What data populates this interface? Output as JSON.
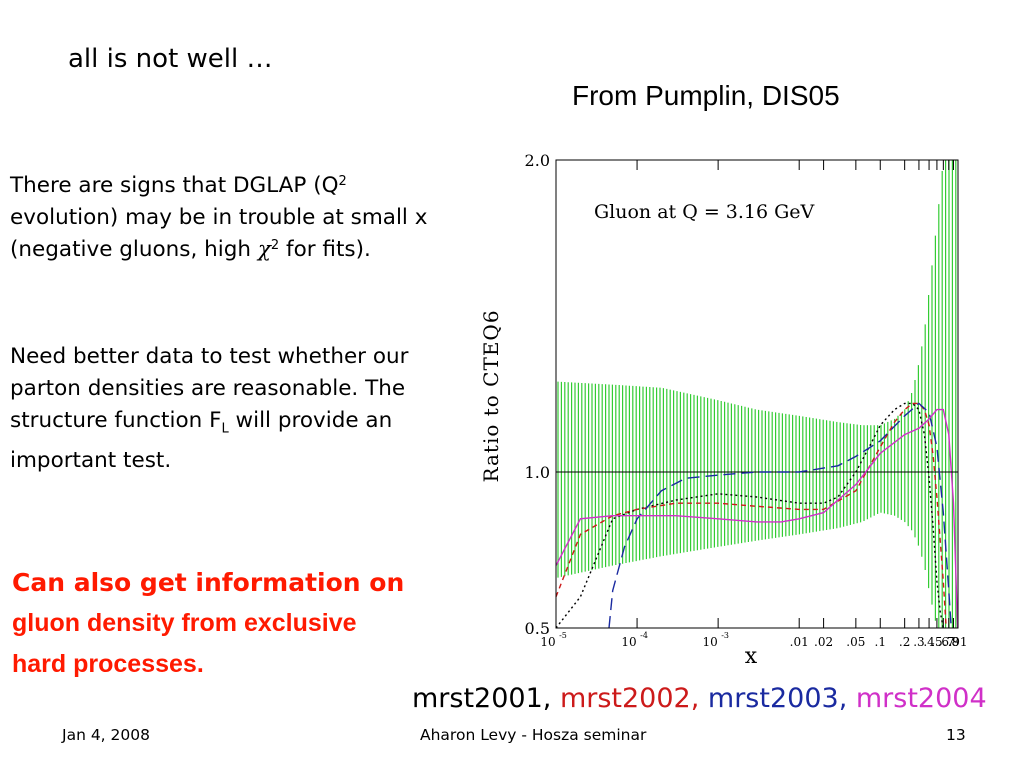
{
  "slide": {
    "title": "all is not well …",
    "source_note": "From Pumplin, DIS05",
    "para1": {
      "part1": "There are signs that DGLAP (Q",
      "sup1": "2",
      "part2": "evolution) may be in trouble at small x (negative gluons, high ",
      "chi": "χ",
      "sup2": "2",
      "part3": "for fits)."
    },
    "para2": {
      "part1": "Need better data to test whether our parton densities are reasonable. The structure function F",
      "sub": "L",
      "part2": " will provide an important test."
    },
    "highlight": {
      "line1": "Can also get information on",
      "line2": "gluon density from exclusive",
      "line3": "hard processes."
    },
    "footer": {
      "date": "Jan 4, 2008",
      "center": "Aharon Levy - Hosza seminar",
      "page": "13"
    }
  },
  "colors": {
    "band": "#33cc33",
    "mrst2001": "#000000",
    "mrst2002": "#cc1a1a",
    "mrst2003": "#1a2aa0",
    "mrst2004": "#d030c8",
    "highlight": "#ff1a00"
  },
  "chart_data": {
    "type": "line",
    "annotation": "Gluon at Q = 3.16 GeV",
    "ylabel": "Ratio to CTEQ6",
    "xlabel": "x",
    "xscale": "log",
    "xlim": [
      1e-05,
      0.91
    ],
    "ylim": [
      0.5,
      2.0
    ],
    "reference_line": 1.0,
    "y_ticks": [
      {
        "value": 2.0,
        "label": "2.0"
      },
      {
        "value": 1.0,
        "label": "1.0"
      },
      {
        "value": 0.5,
        "label": "0.5"
      }
    ],
    "x_ticks": [
      {
        "value": 0.01,
        "label": ".01"
      },
      {
        "value": 0.02,
        "label": ".02"
      },
      {
        "value": 0.05,
        "label": ".05"
      },
      {
        "value": 0.1,
        "label": ".1"
      },
      {
        "value": 0.2,
        "label": ".2"
      },
      {
        "value": 0.3,
        "label": ".3"
      },
      {
        "value": 0.4,
        "label": ".4"
      },
      {
        "value": 0.5,
        "label": ".5"
      },
      {
        "value": 0.6,
        "label": ".6"
      },
      {
        "value": 0.7,
        "label": ".7"
      },
      {
        "value": 0.8,
        "label": ".8"
      },
      {
        "value": 0.91,
        "label": ".91"
      }
    ],
    "x_ticks_pow": [
      {
        "value": 1e-05,
        "base": "10",
        "exp": "-5"
      },
      {
        "value": 0.0001,
        "base": "10",
        "exp": "-4"
      },
      {
        "value": 0.001,
        "base": "10",
        "exp": "-3"
      }
    ],
    "band": {
      "x": [
        1e-05,
        5e-05,
        0.0002,
        0.001,
        0.003,
        0.01,
        0.03,
        0.06,
        0.1,
        0.15,
        0.2,
        0.25,
        0.3,
        0.35,
        0.4,
        0.5,
        0.6,
        0.7,
        0.8,
        0.91
      ],
      "lower": [
        0.66,
        0.7,
        0.73,
        0.76,
        0.78,
        0.8,
        0.82,
        0.84,
        0.87,
        0.86,
        0.84,
        0.81,
        0.76,
        0.7,
        0.62,
        0.5,
        0.5,
        0.5,
        0.5,
        0.5
      ],
      "upper": [
        1.29,
        1.28,
        1.27,
        1.23,
        1.2,
        1.18,
        1.16,
        1.15,
        1.15,
        1.17,
        1.2,
        1.26,
        1.35,
        1.45,
        1.58,
        1.8,
        2.0,
        2.0,
        2.0,
        2.0
      ]
    },
    "series": [
      {
        "name": "mrst2001",
        "dash": "2,3",
        "x": [
          1e-05,
          2e-05,
          5e-05,
          0.0001,
          0.0003,
          0.001,
          0.003,
          0.01,
          0.02,
          0.03,
          0.05,
          0.08,
          0.1,
          0.15,
          0.2,
          0.25,
          0.3,
          0.35,
          0.4,
          0.45,
          0.5,
          0.55,
          0.6
        ],
        "y": [
          0.5,
          0.6,
          0.85,
          0.88,
          0.91,
          0.93,
          0.92,
          0.9,
          0.9,
          0.92,
          1.0,
          1.1,
          1.15,
          1.2,
          1.22,
          1.22,
          1.2,
          1.12,
          0.98,
          0.82,
          0.65,
          0.55,
          0.5
        ]
      },
      {
        "name": "mrst2002",
        "dash": "5,4",
        "x": [
          1e-05,
          2e-05,
          5e-05,
          0.0001,
          0.0003,
          0.001,
          0.003,
          0.01,
          0.02,
          0.05,
          0.1,
          0.15,
          0.2,
          0.25,
          0.3,
          0.35,
          0.4,
          0.45,
          0.5,
          0.6,
          0.65
        ],
        "y": [
          0.6,
          0.8,
          0.86,
          0.88,
          0.9,
          0.9,
          0.89,
          0.88,
          0.88,
          0.94,
          1.08,
          1.16,
          1.2,
          1.22,
          1.22,
          1.2,
          1.15,
          1.05,
          0.92,
          0.65,
          0.5
        ]
      },
      {
        "name": "mrst2003",
        "dash": "12,6",
        "x": [
          4.5e-05,
          5e-05,
          7e-05,
          0.0001,
          0.0002,
          0.0004,
          0.001,
          0.003,
          0.01,
          0.03,
          0.05,
          0.1,
          0.2,
          0.3,
          0.4,
          0.5,
          0.6,
          0.7,
          0.75
        ],
        "y": [
          0.5,
          0.62,
          0.76,
          0.85,
          0.94,
          0.98,
          0.99,
          1.0,
          1.0,
          1.02,
          1.05,
          1.1,
          1.18,
          1.22,
          1.19,
          1.08,
          0.87,
          0.62,
          0.5
        ]
      },
      {
        "name": "mrst2004",
        "dash": "",
        "x": [
          1e-05,
          2e-05,
          5e-05,
          0.0001,
          0.0003,
          0.001,
          0.003,
          0.006,
          0.01,
          0.02,
          0.05,
          0.1,
          0.2,
          0.3,
          0.4,
          0.5,
          0.6,
          0.7,
          0.8,
          0.85,
          0.9
        ],
        "y": [
          0.7,
          0.85,
          0.86,
          0.86,
          0.86,
          0.85,
          0.84,
          0.84,
          0.85,
          0.87,
          0.96,
          1.06,
          1.12,
          1.14,
          1.17,
          1.2,
          1.2,
          1.12,
          0.9,
          0.7,
          0.5
        ]
      }
    ]
  }
}
